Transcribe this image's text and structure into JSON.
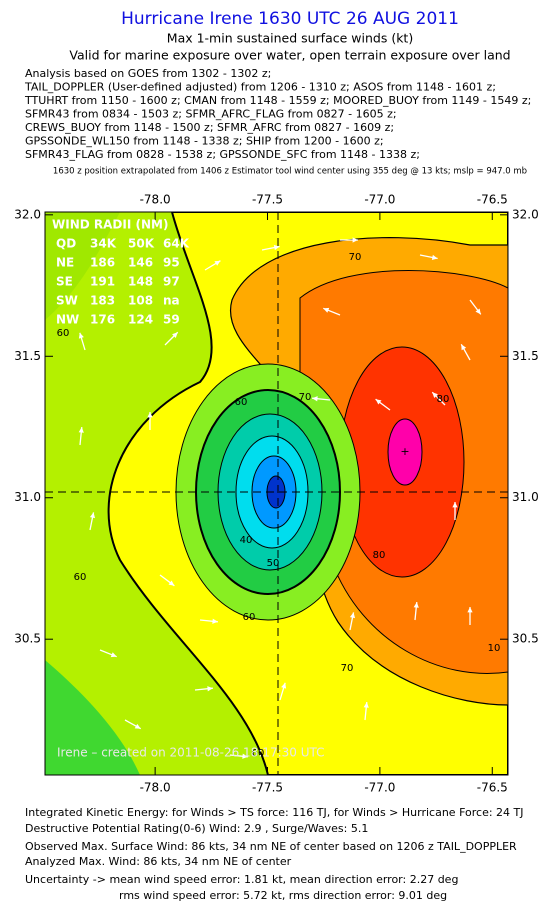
{
  "header": {
    "title": "Hurricane Irene 1630 UTC 26 AUG 2011",
    "subtitle": "Max 1-min sustained surface winds (kt)",
    "validity": "Valid for marine exposure over water, open terrain exposure over land",
    "sources": [
      "Analysis based on GOES from 1302 - 1302 z;",
      "TAIL_DOPPLER (User-defined adjusted) from 1206 - 1310 z; ASOS from 1148 - 1601 z;",
      "TTUHRT from 1150 - 1600 z; CMAN from 1148 - 1559 z; MOORED_BUOY from 1149 - 1549 z;",
      "SFMR43 from 0834 - 1503 z; SFMR_AFRC_FLAG from 0827 - 1605 z;",
      "CREWS_BUOY from 1148 - 1500 z; SFMR_AFRC from 0827 - 1609 z;",
      "GPSSONDE_WL150 from 1148 - 1338 z; SHIP from 1200 - 1600 z;",
      "SFMR43_FLAG from 0828 - 1538 z; GPSSONDE_SFC from 1148 - 1338 z;"
    ],
    "note": "1630 z position extrapolated from 1406 z Estimator tool wind center using 355 deg @ 13 kts;  mslp = 947.0 mb"
  },
  "map": {
    "xlim": [
      -78.49,
      -76.43
    ],
    "ylim": [
      30.02,
      32.01
    ],
    "xticks": [
      {
        "value": -78.0,
        "label": "-78.0"
      },
      -77.5,
      {
        "value": -77.0,
        "label": "-77.0"
      },
      -76.5
    ],
    "yticks": [
      {
        "value": 32.0,
        "label": "32.0"
      },
      31.5,
      {
        "value": 31.0,
        "label": "31.0"
      },
      30.5
    ],
    "contour_labels": [
      70,
      60,
      70,
      80,
      60,
      40,
      50,
      60,
      60,
      80,
      70,
      10,
      60
    ],
    "watermark": "Irene – created on 2011-08-26 18:17:30 UTC",
    "wind_radii": {
      "title": "WIND RADII (NM)",
      "rows": [
        [
          "QD",
          "34K",
          "50K",
          "64K"
        ],
        [
          "NE",
          186,
          146,
          95
        ],
        [
          "SE",
          191,
          148,
          97
        ],
        [
          "SW",
          183,
          108,
          "na"
        ],
        [
          "NW",
          176,
          124,
          59
        ]
      ]
    }
  },
  "footer": [
    "Integrated Kinetic Energy:  for Winds > TS force: 116 TJ,  for Winds > Hurricane Force: 24 TJ",
    "Destructive Potential Rating(0-6)   Wind: 2.9 , Surge/Waves: 5.1",
    "Observed Max. Surface Wind: 86 kts, 34 nm NE of center based on 1206 z TAIL_DOPPLER",
    "Analyzed Max. Wind: 86 kts, 34 nm NE of center",
    "Uncertainty -> mean wind speed error: 1.81 kt,   mean direction error: 2.27 deg",
    "rms wind speed error: 5.72 kt,   rms direction error: 9.01 deg"
  ]
}
